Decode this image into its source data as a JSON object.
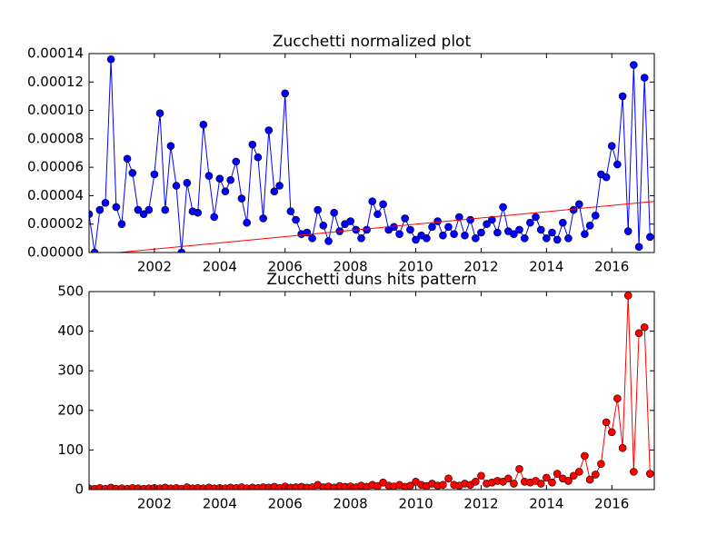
{
  "chart_data": [
    {
      "type": "line",
      "title": "Zucchetti normalized plot",
      "x": [
        2000.0,
        2000.17,
        2000.33,
        2000.5,
        2000.67,
        2000.83,
        2001.0,
        2001.17,
        2001.33,
        2001.5,
        2001.67,
        2001.83,
        2002.0,
        2002.17,
        2002.33,
        2002.5,
        2002.67,
        2002.83,
        2003.0,
        2003.17,
        2003.33,
        2003.5,
        2003.67,
        2003.83,
        2004.0,
        2004.17,
        2004.33,
        2004.5,
        2004.67,
        2004.83,
        2005.0,
        2005.17,
        2005.33,
        2005.5,
        2005.67,
        2005.83,
        2006.0,
        2006.17,
        2006.33,
        2006.5,
        2006.67,
        2006.83,
        2007.0,
        2007.17,
        2007.33,
        2007.5,
        2007.67,
        2007.83,
        2008.0,
        2008.17,
        2008.33,
        2008.5,
        2008.67,
        2008.83,
        2009.0,
        2009.17,
        2009.33,
        2009.5,
        2009.67,
        2009.83,
        2010.0,
        2010.17,
        2010.33,
        2010.5,
        2010.67,
        2010.83,
        2011.0,
        2011.17,
        2011.33,
        2011.5,
        2011.67,
        2011.83,
        2012.0,
        2012.17,
        2012.33,
        2012.5,
        2012.67,
        2012.83,
        2013.0,
        2013.17,
        2013.33,
        2013.5,
        2013.67,
        2013.83,
        2014.0,
        2014.17,
        2014.33,
        2014.5,
        2014.67,
        2014.83,
        2015.0,
        2015.17,
        2015.33,
        2015.5,
        2015.67,
        2015.83,
        2016.0,
        2016.17,
        2016.33,
        2016.5,
        2016.67,
        2016.83,
        2017.0,
        2017.17
      ],
      "series": [
        {
          "color": "#0000ff",
          "values": [
            2.7e-05,
            0.0,
            3e-05,
            3.5e-05,
            0.000136,
            3.2e-05,
            2e-05,
            6.6e-05,
            5.6e-05,
            3e-05,
            2.7e-05,
            3e-05,
            5.5e-05,
            9.8e-05,
            3e-05,
            7.5e-05,
            4.7e-05,
            0.0,
            4.9e-05,
            2.9e-05,
            2.8e-05,
            9e-05,
            5.4e-05,
            2.5e-05,
            5.2e-05,
            4.3e-05,
            5.1e-05,
            6.4e-05,
            3.8e-05,
            2.1e-05,
            7.6e-05,
            6.7e-05,
            2.4e-05,
            8.6e-05,
            4.3e-05,
            4.7e-05,
            0.000112,
            2.9e-05,
            2.3e-05,
            1.3e-05,
            1.4e-05,
            1e-05,
            3e-05,
            1.9e-05,
            8e-06,
            2.8e-05,
            1.5e-05,
            2e-05,
            2.2e-05,
            1.6e-05,
            1e-05,
            1.6e-05,
            3.6e-05,
            2.7e-05,
            3.4e-05,
            1.6e-05,
            1.8e-05,
            1.3e-05,
            2.4e-05,
            1.6e-05,
            9e-06,
            1.2e-05,
            1e-05,
            1.8e-05,
            2.2e-05,
            1.2e-05,
            1.8e-05,
            1.3e-05,
            2.5e-05,
            1.2e-05,
            2.3e-05,
            1e-05,
            1.4e-05,
            2e-05,
            2.3e-05,
            1.4e-05,
            3.2e-05,
            1.5e-05,
            1.3e-05,
            1.6e-05,
            1e-05,
            2.1e-05,
            2.5e-05,
            1.6e-05,
            1e-05,
            1.4e-05,
            9e-06,
            2.1e-05,
            1e-05,
            3e-05,
            3.4e-05,
            1.3e-05,
            1.9e-05,
            2.6e-05,
            5.5e-05,
            5.3e-05,
            7.5e-05,
            6.2e-05,
            0.00011,
            1.5e-05,
            0.000132,
            4e-06,
            0.000123,
            1.1e-05
          ]
        }
      ],
      "trend": {
        "color": "#ff0000",
        "x": [
          2000.0,
          2017.3
        ],
        "values": [
          -2e-06,
          3.6e-05
        ]
      },
      "xlim": [
        2000.0,
        2017.3
      ],
      "xticks": [
        2002,
        2004,
        2006,
        2008,
        2010,
        2012,
        2014,
        2016
      ],
      "ylim": [
        0,
        0.00014
      ],
      "yticks": [
        {
          "value": 0,
          "label": "0.00000"
        },
        {
          "value": 2e-05,
          "label": "0.00002"
        },
        {
          "value": 4e-05,
          "label": "0.00004"
        },
        {
          "value": 6e-05,
          "label": "0.00006"
        },
        {
          "value": 8e-05,
          "label": "0.00008"
        },
        {
          "value": 0.0001,
          "label": "0.00010"
        },
        {
          "value": 0.00012,
          "label": "0.00012"
        },
        {
          "value": 0.00014,
          "label": "0.00014"
        }
      ]
    },
    {
      "type": "line",
      "title": "Zucchetti duns hits pattern",
      "x": [
        2000.0,
        2000.17,
        2000.33,
        2000.5,
        2000.67,
        2000.83,
        2001.0,
        2001.17,
        2001.33,
        2001.5,
        2001.67,
        2001.83,
        2002.0,
        2002.17,
        2002.33,
        2002.5,
        2002.67,
        2002.83,
        2003.0,
        2003.17,
        2003.33,
        2003.5,
        2003.67,
        2003.83,
        2004.0,
        2004.17,
        2004.33,
        2004.5,
        2004.67,
        2004.83,
        2005.0,
        2005.17,
        2005.33,
        2005.5,
        2005.67,
        2005.83,
        2006.0,
        2006.17,
        2006.33,
        2006.5,
        2006.67,
        2006.83,
        2007.0,
        2007.17,
        2007.33,
        2007.5,
        2007.67,
        2007.83,
        2008.0,
        2008.17,
        2008.33,
        2008.5,
        2008.67,
        2008.83,
        2009.0,
        2009.17,
        2009.33,
        2009.5,
        2009.67,
        2009.83,
        2010.0,
        2010.17,
        2010.33,
        2010.5,
        2010.67,
        2010.83,
        2011.0,
        2011.17,
        2011.33,
        2011.5,
        2011.67,
        2011.83,
        2012.0,
        2012.17,
        2012.33,
        2012.5,
        2012.67,
        2012.83,
        2013.0,
        2013.17,
        2013.33,
        2013.5,
        2013.67,
        2013.83,
        2014.0,
        2014.17,
        2014.33,
        2014.5,
        2014.67,
        2014.83,
        2015.0,
        2015.17,
        2015.33,
        2015.5,
        2015.67,
        2015.83,
        2016.0,
        2016.17,
        2016.33,
        2016.5,
        2016.67,
        2016.83,
        2017.0,
        2017.17
      ],
      "series": [
        {
          "color": "#ff0000",
          "values": [
            3,
            2,
            4,
            2,
            5,
            2,
            3,
            2,
            4,
            3,
            2,
            3,
            4,
            3,
            5,
            3,
            4,
            2,
            6,
            3,
            4,
            3,
            5,
            3,
            4,
            3,
            5,
            4,
            6,
            3,
            5,
            4,
            6,
            5,
            7,
            4,
            8,
            5,
            6,
            7,
            5,
            6,
            12,
            6,
            8,
            5,
            9,
            7,
            8,
            6,
            10,
            7,
            12,
            9,
            18,
            10,
            8,
            12,
            7,
            10,
            20,
            12,
            9,
            15,
            10,
            12,
            28,
            12,
            10,
            15,
            12,
            20,
            35,
            15,
            18,
            22,
            20,
            28,
            15,
            52,
            20,
            18,
            22,
            15,
            30,
            18,
            40,
            28,
            22,
            35,
            45,
            85,
            25,
            38,
            65,
            170,
            145,
            230,
            105,
            490,
            45,
            395,
            410,
            40
          ]
        }
      ],
      "xlim": [
        2000.0,
        2017.3
      ],
      "xticks": [
        2002,
        2004,
        2006,
        2008,
        2010,
        2012,
        2014,
        2016
      ],
      "ylim": [
        0,
        500
      ],
      "yticks": [
        0,
        100,
        200,
        300,
        400,
        500
      ]
    }
  ]
}
